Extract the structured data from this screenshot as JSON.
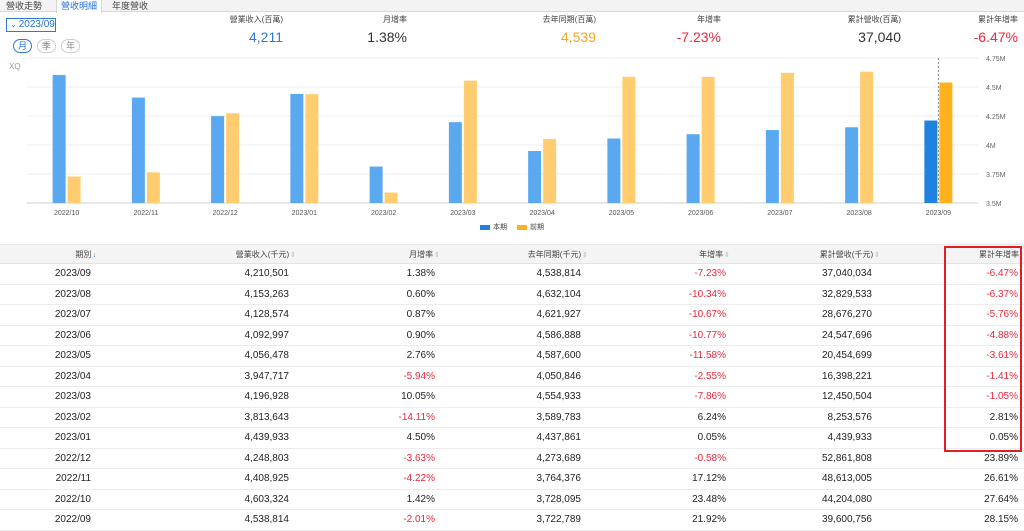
{
  "tabs": [
    "營收走勢",
    "營收明細",
    "年度營收"
  ],
  "active_tab": 1,
  "period_select": {
    "value": "2023/09"
  },
  "frequency": [
    "月",
    "季",
    "年"
  ],
  "summary": [
    {
      "label": "營業收入(百萬)",
      "value": "4,211",
      "color": "blue"
    },
    {
      "label": "月增率",
      "value": "1.38%",
      "color": "dark"
    },
    {
      "label": "去年同期(百萬)",
      "value": "4,539",
      "color": "orange"
    },
    {
      "label": "年增率",
      "value": "-7.23%",
      "color": "red"
    },
    {
      "label": "累計營收(百萬)",
      "value": "37,040",
      "color": "dark"
    },
    {
      "label": "累計年增率",
      "value": "-6.47%",
      "color": "red"
    }
  ],
  "chart_watermark": "XQ",
  "chart_data": {
    "type": "bar",
    "categories": [
      "2022/10",
      "2022/11",
      "2022/12",
      "2023/01",
      "2023/02",
      "2023/03",
      "2023/04",
      "2023/05",
      "2023/06",
      "2023/07",
      "2023/08",
      "2023/09"
    ],
    "series": [
      {
        "name": "本期",
        "values": [
          4.603,
          4.409,
          4.249,
          4.44,
          3.814,
          4.197,
          3.948,
          4.056,
          4.093,
          4.129,
          4.153,
          4.211
        ]
      },
      {
        "name": "前期",
        "values": [
          3.728,
          3.764,
          4.274,
          4.438,
          3.59,
          4.555,
          4.051,
          4.588,
          4.587,
          4.622,
          4.632,
          4.539
        ]
      }
    ],
    "ylim": [
      3.5,
      4.75
    ],
    "yticks": [
      "3.5M",
      "3.75M",
      "4M",
      "4.25M",
      "4.5M",
      "4.75M"
    ],
    "ytick_values": [
      3.5,
      3.75,
      4.0,
      4.25,
      4.5,
      4.75
    ],
    "highlight_index": 11,
    "colors": {
      "current": "#5aa9f0",
      "prior": "#ffcd70",
      "current_hl": "#1f82e0",
      "prior_hl": "#ffb21e"
    }
  },
  "legend": {
    "current": "本期",
    "prior": "前期"
  },
  "table": {
    "headers": [
      "期別",
      "營業收入(千元)",
      "月增率",
      "去年同期(千元)",
      "年增率",
      "累計營收(千元)",
      "累計年增率"
    ],
    "rows": [
      [
        "2023/09",
        "4,210,501",
        "1.38%",
        "4,538,814",
        "-7.23%",
        "37,040,034",
        "-6.47%"
      ],
      [
        "2023/08",
        "4,153,263",
        "0.60%",
        "4,632,104",
        "-10.34%",
        "32,829,533",
        "-6.37%"
      ],
      [
        "2023/07",
        "4,128,574",
        "0.87%",
        "4,621,927",
        "-10.67%",
        "28,676,270",
        "-5.76%"
      ],
      [
        "2023/06",
        "4,092,997",
        "0.90%",
        "4,586,888",
        "-10.77%",
        "24,547,696",
        "-4.88%"
      ],
      [
        "2023/05",
        "4,056,478",
        "2.76%",
        "4,587,600",
        "-11.58%",
        "20,454,699",
        "-3.61%"
      ],
      [
        "2023/04",
        "3,947,717",
        "-5.94%",
        "4,050,846",
        "-2.55%",
        "16,398,221",
        "-1.41%"
      ],
      [
        "2023/03",
        "4,196,928",
        "10.05%",
        "4,554,933",
        "-7.86%",
        "12,450,504",
        "-1.05%"
      ],
      [
        "2023/02",
        "3,813,643",
        "-14.11%",
        "3,589,783",
        "6.24%",
        "8,253,576",
        "2.81%"
      ],
      [
        "2023/01",
        "4,439,933",
        "4.50%",
        "4,437,861",
        "0.05%",
        "4,439,933",
        "0.05%"
      ],
      [
        "2022/12",
        "4,248,803",
        "-3.63%",
        "4,273,689",
        "-0.58%",
        "52,861,808",
        "23.89%"
      ],
      [
        "2022/11",
        "4,408,925",
        "-4.22%",
        "3,764,376",
        "17.12%",
        "48,613,005",
        "26.61%"
      ],
      [
        "2022/10",
        "4,603,324",
        "1.42%",
        "3,728,095",
        "23.48%",
        "44,204,080",
        "27.64%"
      ],
      [
        "2022/09",
        "4,538,814",
        "-2.01%",
        "3,722,789",
        "21.92%",
        "39,600,756",
        "28.15%"
      ]
    ]
  }
}
